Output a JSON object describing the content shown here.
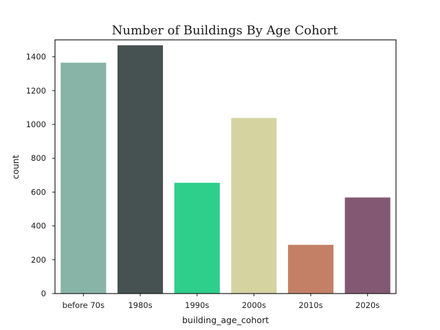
{
  "chart_data": {
    "type": "bar",
    "title": "Number of Buildings By Age Cohort",
    "xlabel": "building_age_cohort",
    "ylabel": "count",
    "categories": [
      "before 70s",
      "1980s",
      "1990s",
      "2000s",
      "2010s",
      "2020s"
    ],
    "values": [
      1365,
      1468,
      655,
      1038,
      288,
      568
    ],
    "colors": [
      "#88b4a8",
      "#465151",
      "#2ecf8a",
      "#d5d3a0",
      "#c48066",
      "#835873"
    ],
    "ylim": [
      0,
      1500
    ],
    "yticks": [
      0,
      200,
      400,
      600,
      800,
      1000,
      1200,
      1400
    ],
    "grid": false,
    "legend": false
  }
}
